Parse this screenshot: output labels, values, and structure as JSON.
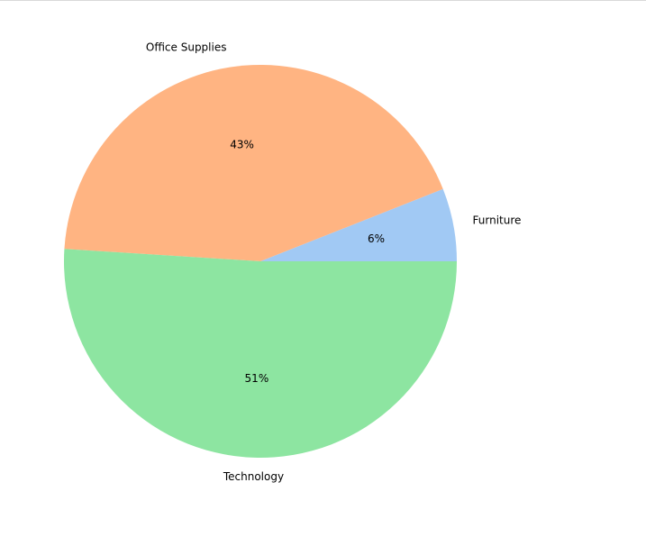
{
  "chart_data": {
    "type": "pie",
    "categories": [
      "Furniture",
      "Office Supplies",
      "Technology"
    ],
    "values": [
      6,
      43,
      51
    ],
    "value_labels": [
      "6%",
      "43%",
      "51%"
    ],
    "colors": [
      "#a1c9f4",
      "#ffb482",
      "#8de5a1"
    ],
    "start_angle_deg": 0,
    "direction": "counterclockwise",
    "title": "",
    "legend": "none"
  }
}
